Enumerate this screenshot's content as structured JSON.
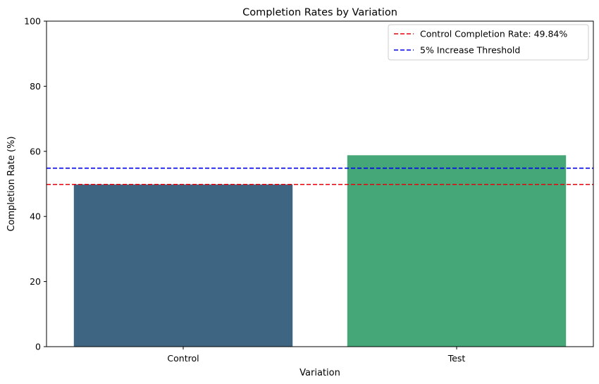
{
  "chart_data": {
    "type": "bar",
    "title": "Completion Rates by Variation",
    "xlabel": "Variation",
    "ylabel": "Completion Rate (%)",
    "categories": [
      "Control",
      "Test"
    ],
    "values": [
      49.84,
      58.8
    ],
    "bar_colors": [
      "#3e6682",
      "#45a778"
    ],
    "ylim": [
      0,
      100
    ],
    "yticks": [
      "0",
      "20",
      "40",
      "60",
      "80",
      "100"
    ],
    "grid": false,
    "legend_position": "top-right",
    "reference_lines": [
      {
        "label": "Control Completion Rate: 49.84%",
        "value": 49.84,
        "color": "#e8000b",
        "style": "dashed"
      },
      {
        "label": "5% Increase Threshold",
        "value": 54.84,
        "color": "#0000ee",
        "style": "dashed"
      }
    ]
  }
}
